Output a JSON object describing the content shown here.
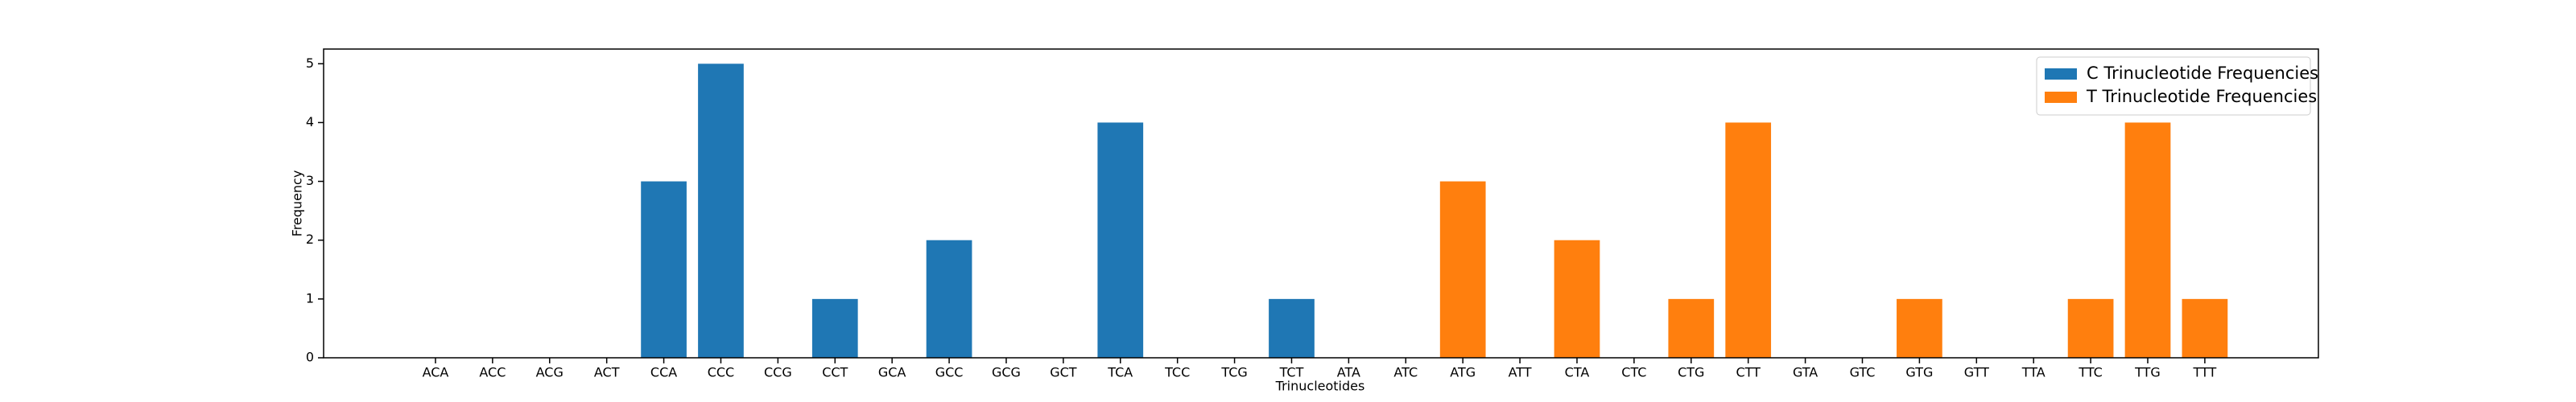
{
  "chart_data": {
    "type": "bar",
    "x_label": "Trinucleotides",
    "y_label": "Frequency",
    "categories": [
      "ACA",
      "ACC",
      "ACG",
      "ACT",
      "CCA",
      "CCC",
      "CCG",
      "CCT",
      "GCA",
      "GCC",
      "GCG",
      "GCT",
      "TCA",
      "TCC",
      "TCG",
      "TCT",
      "ATA",
      "ATC",
      "ATG",
      "ATT",
      "CTA",
      "CTC",
      "CTG",
      "CTT",
      "GTA",
      "GTC",
      "GTG",
      "GTT",
      "TTA",
      "TTC",
      "TTG",
      "TTT"
    ],
    "series": [
      {
        "name": "C Trinucleotide Frequencies",
        "color": "#1f77b4",
        "values": [
          0,
          0,
          0,
          0,
          3,
          5,
          0,
          1,
          0,
          2,
          0,
          0,
          4,
          0,
          0,
          1,
          null,
          null,
          null,
          null,
          null,
          null,
          null,
          null,
          null,
          null,
          null,
          null,
          null,
          null,
          null,
          null
        ]
      },
      {
        "name": "T Trinucleotide Frequencies",
        "color": "#ff7f0e",
        "values": [
          null,
          null,
          null,
          null,
          null,
          null,
          null,
          null,
          null,
          null,
          null,
          null,
          null,
          null,
          null,
          null,
          0,
          0,
          3,
          0,
          2,
          0,
          1,
          4,
          0,
          0,
          1,
          0,
          0,
          1,
          4,
          1
        ]
      }
    ],
    "ylim": [
      0,
      5.25
    ],
    "yticks": [
      0,
      1,
      2,
      3,
      4,
      5
    ],
    "grid": false,
    "legend": "upper right"
  }
}
